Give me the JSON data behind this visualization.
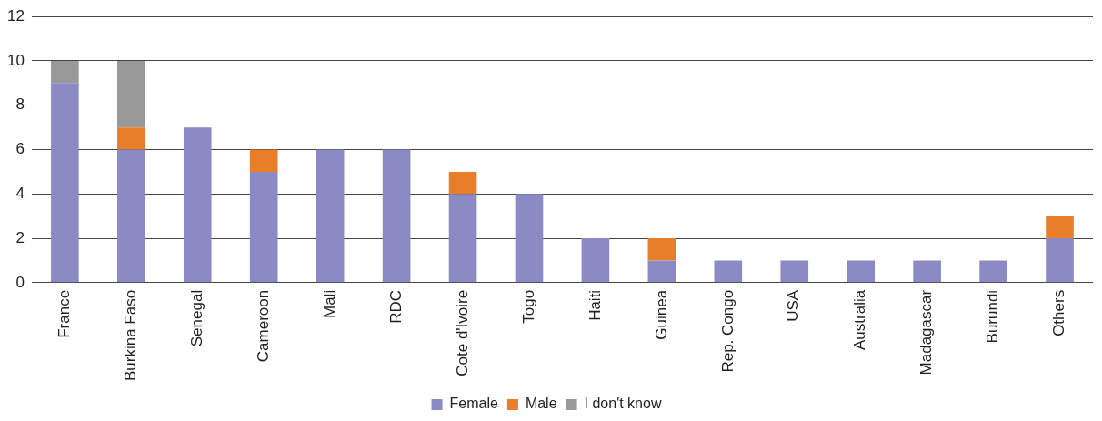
{
  "chart_data": {
    "type": "bar",
    "stacked": true,
    "categories": [
      "France",
      "Burkina Faso",
      "Senegal",
      "Cameroon",
      "Mali",
      "RDC",
      "Cote d'Ivoire",
      "Togo",
      "Haiti",
      "Guinea",
      "Rep. Congo",
      "USA",
      "Australia",
      "Madagascar",
      "Burundi",
      "Others"
    ],
    "series": [
      {
        "name": "Female",
        "color": "#8b8ac4",
        "values": [
          9,
          6,
          7,
          5,
          6,
          6,
          4,
          4,
          2,
          1,
          1,
          1,
          1,
          1,
          1,
          2
        ]
      },
      {
        "name": "Male",
        "color": "#e87d2a",
        "values": [
          0,
          1,
          0,
          1,
          0,
          0,
          1,
          0,
          0,
          1,
          0,
          0,
          0,
          0,
          0,
          1
        ]
      },
      {
        "name": "I don't know",
        "color": "#999999",
        "values": [
          1,
          3,
          0,
          0,
          0,
          0,
          0,
          0,
          0,
          0,
          0,
          0,
          0,
          0,
          0,
          0
        ]
      }
    ],
    "ylim": [
      0,
      12
    ],
    "yticks": [
      0,
      2,
      4,
      6,
      8,
      10,
      12
    ],
    "grid": "y",
    "legend": "bottom"
  }
}
